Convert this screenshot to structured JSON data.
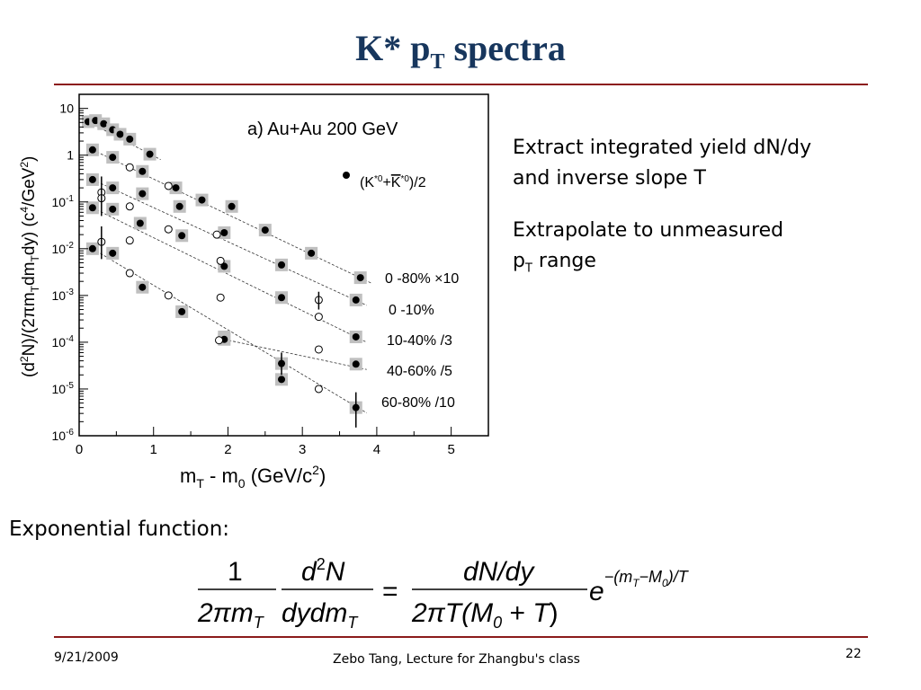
{
  "slide": {
    "title_main": "K* p",
    "title_sub": "T",
    "title_tail": " spectra",
    "bullets": [
      {
        "line1": "Extract integrated yield dN/dy",
        "line2": "and inverse slope T"
      },
      {
        "line1": "Extrapolate to unmeasured",
        "line2_pre": "p",
        "line2_sub": "T",
        "line2_post": " range"
      }
    ],
    "exponential_label": "Exponential function:",
    "footer": {
      "date": "9/21/2009",
      "author": "Zebo Tang, Lecture for Zhangbu's class",
      "page": "22"
    }
  },
  "chart_data": {
    "type": "scatter",
    "log_y": true,
    "panel_label": "a)  Au+Au 200 GeV",
    "legend_marker_label": "(K*0+K*0)/2",
    "xlabel": "mT - m0 (GeV/c2)",
    "ylabel": "(d2N)/(2πmTdmTdy) (c4/GeV2)",
    "xlim": [
      0,
      5.5
    ],
    "ylim": [
      1e-06,
      20
    ],
    "x_ticks": [
      "0",
      "1",
      "2",
      "3",
      "4",
      "5"
    ],
    "y_ticks": [
      "10",
      "1",
      "10-1",
      "10-2",
      "10-3",
      "10-4",
      "10-5",
      "10-6"
    ],
    "series": [
      {
        "name": "0 -80% ×10",
        "filled": [
          [
            0.12,
            5.2
          ],
          [
            0.22,
            5.5
          ],
          [
            0.33,
            4.7
          ],
          [
            0.45,
            3.5
          ],
          [
            0.55,
            2.8
          ],
          [
            0.68,
            2.2
          ],
          [
            0.95,
            1.05
          ]
        ],
        "open": []
      },
      {
        "name": "0 -10%",
        "filled": [
          [
            0.18,
            1.3
          ],
          [
            0.45,
            0.9
          ],
          [
            0.85,
            0.45
          ],
          [
            1.3,
            0.2
          ],
          [
            1.65,
            0.11
          ],
          [
            2.05,
            0.08
          ],
          [
            2.5,
            0.025
          ],
          [
            3.12,
            0.008
          ],
          [
            3.78,
            0.0024
          ]
        ],
        "open": [
          [
            0.68,
            0.55
          ]
        ]
      },
      {
        "name": "10-40% /3",
        "filled": [
          [
            0.18,
            0.3
          ],
          [
            0.45,
            0.2
          ],
          [
            0.85,
            0.15
          ],
          [
            1.35,
            0.08
          ],
          [
            1.95,
            0.022
          ],
          [
            2.72,
            0.0045
          ],
          [
            3.72,
            0.0008
          ]
        ],
        "open": [
          [
            0.3,
            0.16
          ],
          [
            0.68,
            0.08
          ],
          [
            1.2,
            0.22
          ],
          [
            1.85,
            0.02
          ]
        ]
      },
      {
        "name": "40-60% /5",
        "filled": [
          [
            0.18,
            0.075
          ],
          [
            0.45,
            0.07
          ],
          [
            0.82,
            0.035
          ],
          [
            1.38,
            0.019
          ],
          [
            1.95,
            0.0042
          ],
          [
            2.72,
            0.0009
          ],
          [
            3.72,
            0.00013
          ]
        ],
        "open": [
          [
            0.3,
            0.12
          ],
          [
            0.68,
            0.015
          ],
          [
            1.2,
            0.026
          ],
          [
            1.9,
            0.0055
          ],
          [
            3.22,
            0.0008
          ]
        ]
      },
      {
        "name": "60-80% /10",
        "filled": [
          [
            0.18,
            0.01
          ],
          [
            0.45,
            0.008
          ],
          [
            0.85,
            0.0015
          ],
          [
            1.38,
            0.00045
          ],
          [
            1.95,
            0.00013
          ],
          [
            2.72,
            3.5e-05
          ],
          [
            3.72,
            4e-06
          ]
        ],
        "open": [
          [
            0.3,
            0.014
          ],
          [
            0.68,
            0.003
          ],
          [
            1.2,
            0.001
          ],
          [
            1.9,
            0.0009
          ],
          [
            3.22,
            0.00035
          ]
        ]
      },
      {
        "name": "",
        "filled": [
          [
            1.95,
            0.000115
          ],
          [
            2.72,
            1.6e-05
          ],
          [
            3.72,
            3.4e-05
          ]
        ],
        "open": [
          [
            1.88,
            0.00011
          ],
          [
            3.22,
            7e-05
          ],
          [
            3.22,
            1e-05
          ]
        ]
      }
    ]
  }
}
